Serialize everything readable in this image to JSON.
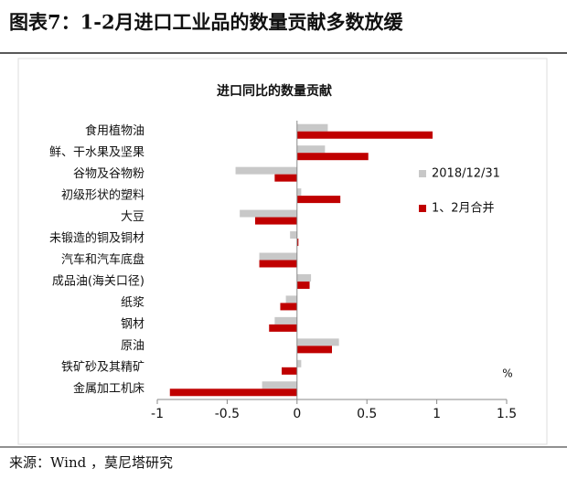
{
  "chart_data": {
    "type": "hbar",
    "title": "图表7：1-2月进口工业品的数量贡献多数放缓",
    "subtitle": "进口同比的数量贡献",
    "unit": "%",
    "source": "来源：Wind ，莫尼塔研究",
    "categories": [
      "食用植物油",
      "鲜、干水果及坚果",
      "谷物及谷物粉",
      "初级形状的塑料",
      "大豆",
      "未锻造的铜及铜材",
      "汽车和汽车底盘",
      "成品油(海关口径)",
      "纸浆",
      "钢材",
      "原油",
      "铁矿砂及其精矿",
      "金属加工机床"
    ],
    "series": [
      {
        "name": "2018/12/31",
        "color": "#c8c8c8",
        "values": [
          0.22,
          0.2,
          -0.44,
          0.03,
          -0.41,
          -0.05,
          -0.27,
          0.1,
          -0.08,
          -0.16,
          0.3,
          0.03,
          -0.25
        ]
      },
      {
        "name": "1、2月合并",
        "color": "#c00000",
        "values": [
          0.97,
          0.51,
          -0.16,
          0.31,
          -0.3,
          0.01,
          -0.27,
          0.09,
          -0.12,
          -0.2,
          0.25,
          -0.11,
          -0.91
        ]
      }
    ],
    "xlim": [
      -1,
      1.5
    ],
    "xticks": [
      -1,
      -0.5,
      0,
      0.5,
      1,
      1.5
    ]
  }
}
